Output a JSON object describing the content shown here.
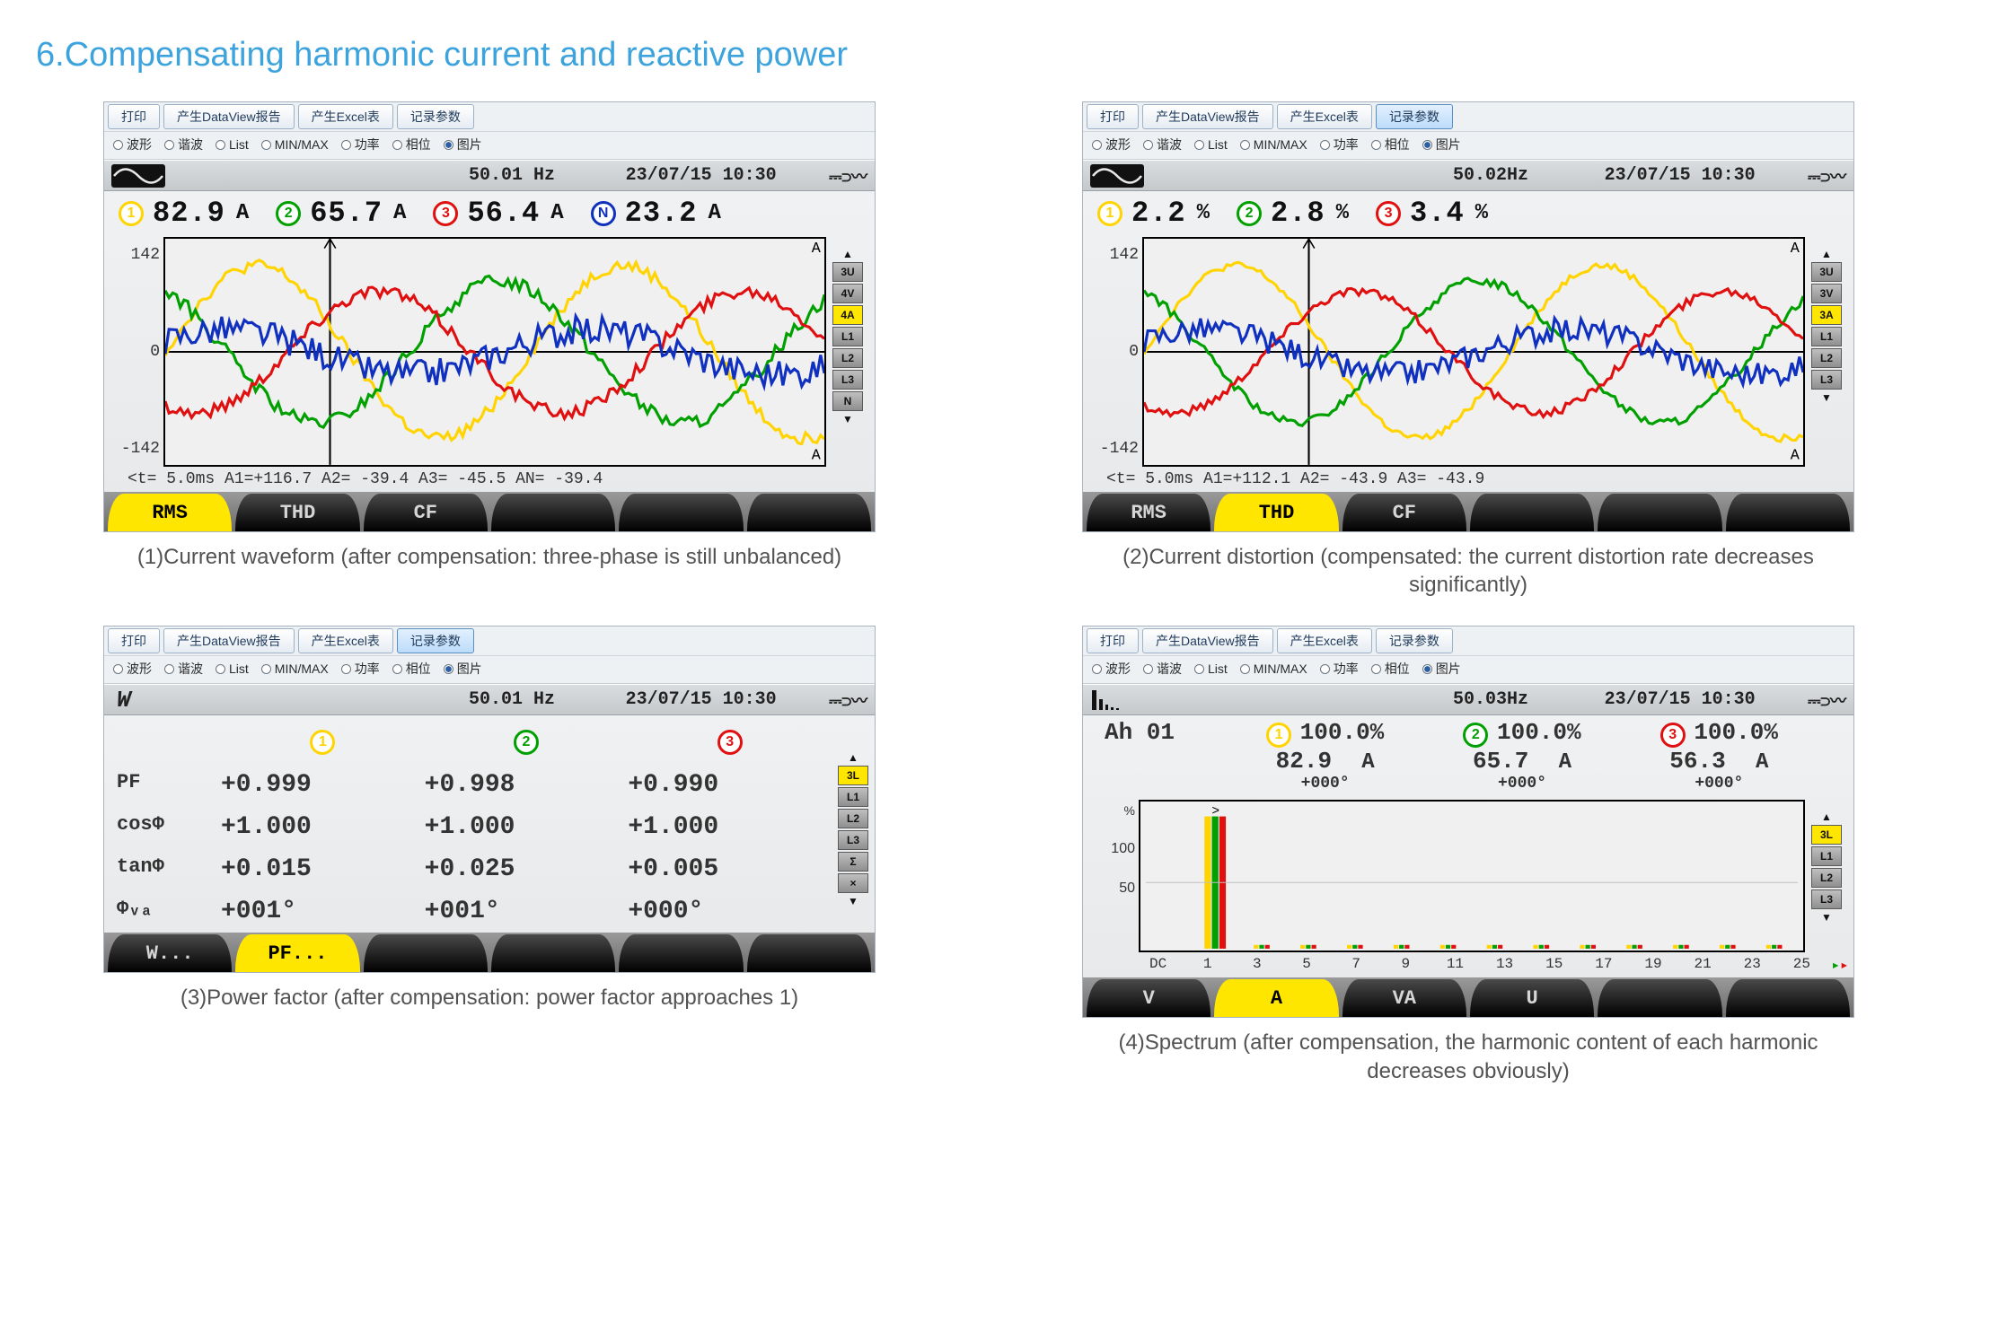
{
  "title": "6.Compensating harmonic current and reactive power",
  "colors": {
    "title": "#3ca3dd",
    "phase1": "#ffd400",
    "phase2": "#00a000",
    "phase3": "#e01010",
    "neutral": "#1030c0",
    "highlight": "#ffe600",
    "grid": "#c0c0c0",
    "axis": "#000000"
  },
  "toolbar": {
    "print": "打印",
    "dataview": "产生DataView报告",
    "excel": "产生Excel表",
    "record": "记录参数"
  },
  "radios": {
    "waveform": "波形",
    "harmonic": "谐波",
    "list": "List",
    "minmax": "MIN/MAX",
    "power": "功率",
    "phase": "相位",
    "image": "图片"
  },
  "side_buttons": {
    "wave": [
      "3U",
      "4V",
      "4A",
      "L1",
      "L2",
      "L3",
      "N"
    ],
    "thd": [
      "3U",
      "3V",
      "3A",
      "L1",
      "L2",
      "L3"
    ],
    "pf": [
      "3L",
      "L1",
      "L2",
      "L3",
      "Σ",
      "×"
    ],
    "spec": [
      "3L",
      "L1",
      "L2",
      "L3"
    ]
  },
  "side_selected": {
    "wave": "4A",
    "thd": "3A",
    "pf": "3L",
    "spec": "3L"
  },
  "tabs_groups": {
    "wave": [
      {
        "label": "RMS",
        "kind": "text",
        "active": true
      },
      {
        "label": "THD",
        "kind": "text"
      },
      {
        "label": "CF",
        "kind": "text"
      },
      {
        "label": "harp",
        "kind": "icon"
      },
      {
        "label": "bars",
        "kind": "icon"
      },
      {
        "label": "geom",
        "kind": "icon"
      }
    ],
    "thd": [
      {
        "label": "RMS",
        "kind": "text"
      },
      {
        "label": "THD",
        "kind": "text",
        "active": true
      },
      {
        "label": "CF",
        "kind": "text"
      },
      {
        "label": "harp",
        "kind": "icon"
      },
      {
        "label": "bars",
        "kind": "icon"
      },
      {
        "label": "geom",
        "kind": "icon"
      }
    ],
    "pf": [
      {
        "label": "W...",
        "kind": "text"
      },
      {
        "label": "PF...",
        "kind": "text",
        "active": true
      },
      {
        "label": "",
        "kind": "blank"
      },
      {
        "label": "",
        "kind": "blank"
      },
      {
        "label": "",
        "kind": "blank"
      },
      {
        "label": "",
        "kind": "blank"
      }
    ],
    "spec": [
      {
        "label": "V",
        "kind": "text"
      },
      {
        "label": "A",
        "kind": "text",
        "active": true
      },
      {
        "label": "VA",
        "kind": "text"
      },
      {
        "label": "U",
        "kind": "text"
      },
      {
        "label": "",
        "kind": "blank"
      },
      {
        "label": "mag",
        "kind": "icon"
      }
    ]
  },
  "panel1": {
    "freq": "50.01 Hz",
    "datetime": "23/07/15  10:30",
    "readings": [
      {
        "n": "1",
        "v": "82.9",
        "u": "A",
        "color": "#ffd400"
      },
      {
        "n": "2",
        "v": "65.7",
        "u": "A",
        "color": "#00a000"
      },
      {
        "n": "3",
        "v": "56.4",
        "u": "A",
        "color": "#e01010"
      },
      {
        "n": "N",
        "v": "23.2",
        "u": "A",
        "color": "#1030c0"
      }
    ],
    "ylim": [
      -142,
      142
    ],
    "yticks": [
      "142",
      "0",
      "-142"
    ],
    "yunit": "A",
    "cursor_info": "<t=  5.0ms   A1=+116.7   A2=  -39.4   A3=  -45.5   AN=  -39.4",
    "curves": {
      "period_ratio": 1.8,
      "series": [
        {
          "color": "#ffd400",
          "amp": 0.85,
          "phase": 0,
          "noise": 12
        },
        {
          "color": "#00a000",
          "amp": 0.7,
          "phase": 120,
          "noise": 14
        },
        {
          "color": "#e01010",
          "amp": 0.6,
          "phase": 240,
          "noise": 13
        },
        {
          "color": "#1030c0",
          "amp": 0.22,
          "phase": 30,
          "noise": 28
        }
      ]
    },
    "caption": "(1)Current waveform (after compensation: three-phase is still unbalanced)"
  },
  "panel2": {
    "freq": "50.02Hz",
    "datetime": "23/07/15  10:30",
    "readings": [
      {
        "n": "1",
        "v": "2.2",
        "u": "%",
        "color": "#ffd400"
      },
      {
        "n": "2",
        "v": "2.8",
        "u": "%",
        "color": "#00a000"
      },
      {
        "n": "3",
        "v": "3.4",
        "u": "%",
        "color": "#e01010"
      }
    ],
    "ylim": [
      -142,
      142
    ],
    "yticks": [
      "142",
      "0",
      "-142"
    ],
    "yunit": "A",
    "cursor_info": "<t=  5.0ms   A1=+112.1   A2=  -43.9   A3=  -43.9",
    "curves": {
      "period_ratio": 1.8,
      "series": [
        {
          "color": "#ffd400",
          "amp": 0.85,
          "phase": 0,
          "noise": 7
        },
        {
          "color": "#00a000",
          "amp": 0.7,
          "phase": 120,
          "noise": 9
        },
        {
          "color": "#e01010",
          "amp": 0.6,
          "phase": 240,
          "noise": 9
        },
        {
          "color": "#1030c0",
          "amp": 0.22,
          "phase": 30,
          "noise": 24
        }
      ]
    },
    "caption": "(2)Current distortion (compensated: the current distortion rate decreases significantly)"
  },
  "panel3": {
    "freq": "50.01 Hz",
    "datetime": "23/07/15  10:30",
    "row_labels": [
      "PF",
      "cosΦ",
      "tanΦ",
      "Φ_VA"
    ],
    "phi_va_label": "Φ",
    "rows": [
      {
        "label": "PF",
        "v": [
          "+0.999",
          "+0.998",
          "+0.990"
        ]
      },
      {
        "label": "cosΦ",
        "v": [
          "+1.000",
          "+1.000",
          "+1.000"
        ]
      },
      {
        "label": "tanΦ",
        "v": [
          "+0.015",
          "+0.025",
          "+0.005"
        ]
      },
      {
        "label": "Φᵥₐ",
        "v": [
          "+001°",
          "+001°",
          "+000°"
        ]
      }
    ],
    "caption": "(3)Power factor (after compensation: power factor approaches 1)"
  },
  "panel4": {
    "freq": "50.03Hz",
    "datetime": "23/07/15  10:30",
    "lead": "Ah 01",
    "readings": [
      {
        "n": "1",
        "pct": "100.0%",
        "amp": "82.9",
        "ang": "+000°",
        "color": "#ffd400"
      },
      {
        "n": "2",
        "pct": "100.0%",
        "amp": "65.7",
        "ang": "+000°",
        "color": "#00a000"
      },
      {
        "n": "3",
        "pct": "100.0%",
        "amp": "56.3",
        "ang": "+000°",
        "color": "#e01010"
      }
    ],
    "yunit": "%",
    "yticks": [
      "100",
      "50"
    ],
    "xticks": [
      "DC",
      "1",
      "3",
      "5",
      "7",
      "9",
      "11",
      "13",
      "15",
      "17",
      "19",
      "21",
      "23",
      "25"
    ],
    "bars_at_1": [
      {
        "color": "#ffd400",
        "h": 100
      },
      {
        "color": "#00a000",
        "h": 100
      },
      {
        "color": "#e01010",
        "h": 100
      }
    ],
    "caption": "(4)Spectrum (after compensation, the harmonic content of each harmonic decreases obviously)"
  }
}
